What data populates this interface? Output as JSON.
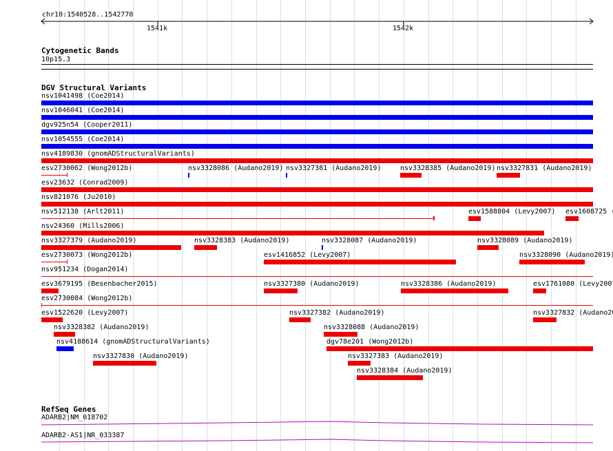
{
  "ruler": {
    "location": "chr10:1540528..1542770",
    "tick_1541k": "1541k",
    "tick_1542k": "1542k"
  },
  "cyto": {
    "title": "Cytogenetic Bands",
    "band": "10p15.3"
  },
  "dgv": {
    "title": "DGV Structural Variants",
    "labels": {
      "nsv1041498": "nsv1041498 (Coe2014)",
      "nsv1046041": "nsv1046041 (Coe2014)",
      "dgv925n54": "dgv925n54 (Cooper2011)",
      "nsv1054555": "nsv1054555 (Coe2014)",
      "nsv4189830": "nsv4189830 (gnomADStructuralVariants)",
      "esv2730062": "esv2730062 (Wong2012b)",
      "nsv3328086": "nsv3328086 (Audano2019)",
      "nsv3327381": "nsv3327381 (Audano2019)",
      "nsv3328385": "nsv3328385 (Audano2019)",
      "nsv3327831": "nsv3327831 (Audano2019)",
      "esv23632": "esv23632 (Conrad2009)",
      "nsv821076": "nsv821076 (Ju2010)",
      "nsv512138": "nsv512138 (Arlt2011)",
      "esv1588804": "esv1588804 (Levy2007)",
      "esv1608725": "esv1608725 (",
      "nsv24360": "nsv24360 (Mills2006)",
      "nsv3327379": "nsv3327379 (Audano2019)",
      "nsv3328383": "nsv3328383 (Audano2019)",
      "nsv3328087": "nsv3328087 (Audano2019)",
      "nsv3328089": "nsv3328089 (Audano2019)",
      "esv2730073": "esv2730073 (Wong2012b)",
      "esv1416852": "esv1416852 (Levy2007)",
      "nsv3328090": "nsv3328090 (Audano2019)",
      "nsv951234": "nsv951234 (Dogan2014)",
      "esv3679195": "esv3679195 (Besenbacher2015)",
      "nsv3327380": "nsv3327380 (Audano2019)",
      "nsv3328386": "nsv3328386 (Audano2019)",
      "esv1761080": "esv1761080 (Levy2007",
      "esv2730084": "esv2730084 (Wong2012b)",
      "esv1522620": "esv1522620 (Levy2007)",
      "nsv3327382": "nsv3327382 (Audano2019)",
      "nsv3327832": "nsv3327832 (Audano20",
      "nsv3328382": "nsv3328382 (Audano2019)",
      "nsv3328088": "nsv3328088 (Audano2019)",
      "nsv4188614": "nsv4188614 (gnomADStructuralVariants)",
      "dgv78e201": "dgv78e201 (Wong2012b)",
      "nsv3327830": "nsv3327830 (Audano2019)",
      "nsv3327383": "nsv3327383 (Audano2019)",
      "nsv3328384": "nsv3328384 (Audano2019)"
    }
  },
  "refseq": {
    "title": "RefSeq Genes",
    "gene1": "ADARB2|NM_018702",
    "gene2": "ADARB2-AS1|NR_033387"
  },
  "colors": {
    "gain": "#0000ee",
    "loss": "#ee0000",
    "gene": "#c000c0",
    "gridline": "#c8e6f4"
  }
}
